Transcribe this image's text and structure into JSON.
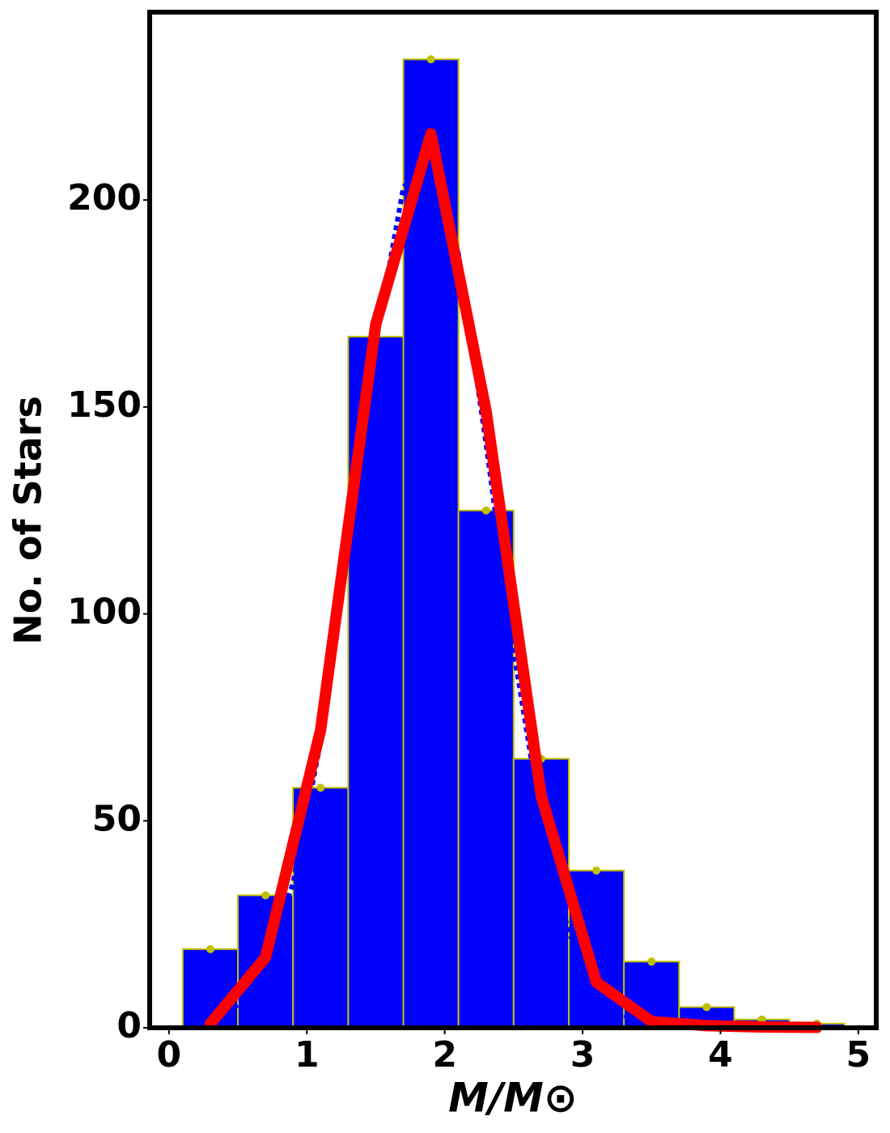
{
  "chart_data": {
    "type": "histogram",
    "xlabel": "M/M⊙",
    "ylabel": "No. of Stars",
    "bins": [
      0.1,
      0.5,
      0.9,
      1.3,
      1.7,
      2.1,
      2.5,
      2.9,
      3.3,
      3.7,
      4.1,
      4.5,
      4.9
    ],
    "counts": [
      19,
      32,
      58,
      167,
      234,
      125,
      65,
      38,
      16,
      5,
      2,
      1
    ],
    "color": "#0000ff",
    "edgecolor": "#bfbf00",
    "marker_color": "#bfbf00",
    "lines": [
      {
        "x": [
          0.3,
          0.5,
          0.7,
          0.9,
          1.1,
          1.3,
          1.5,
          1.7,
          1.9,
          2.1,
          2.3,
          2.5,
          2.7,
          2.9,
          3.1,
          3.3,
          3.5
        ],
        "values": [
          1.7,
          5.5,
          15,
          35,
          69,
          116,
          166,
          203,
          211,
          187,
          141,
          91,
          50,
          23,
          9,
          3,
          1
        ],
        "color": "#0000ff",
        "style": "dotted"
      },
      {
        "x": [
          0.3,
          0.7,
          1.1,
          1.5,
          1.9,
          2.3,
          2.7,
          3.1,
          3.5,
          3.9,
          4.3,
          4.7
        ],
        "values": [
          1,
          17,
          72,
          170,
          216,
          149,
          56,
          11,
          1.5,
          0.5,
          0.2,
          0.1
        ],
        "color": "#ff0000",
        "style": "solid"
      }
    ],
    "xlim": [
      -0.14,
      5.13
    ],
    "ylim": [
      0,
      245.4
    ],
    "xticks": [
      0,
      1,
      2,
      3,
      4,
      5
    ],
    "yticks": [
      0,
      50,
      100,
      150,
      200
    ]
  }
}
